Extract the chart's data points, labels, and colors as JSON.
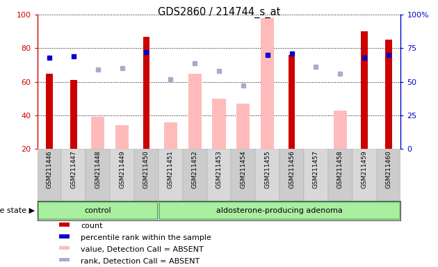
{
  "title": "GDS2860 / 214744_s_at",
  "samples": [
    "GSM211446",
    "GSM211447",
    "GSM211448",
    "GSM211449",
    "GSM211450",
    "GSM211451",
    "GSM211452",
    "GSM211453",
    "GSM211454",
    "GSM211455",
    "GSM211456",
    "GSM211457",
    "GSM211458",
    "GSM211459",
    "GSM211460"
  ],
  "count": [
    65,
    61,
    null,
    null,
    87,
    null,
    null,
    null,
    null,
    null,
    76,
    null,
    null,
    90,
    85
  ],
  "percentile_rank_pct": [
    68,
    69,
    null,
    null,
    72,
    null,
    null,
    null,
    null,
    70,
    71,
    null,
    null,
    68,
    70
  ],
  "value_absent": [
    null,
    null,
    39,
    34,
    null,
    36,
    65,
    50,
    47,
    98,
    null,
    null,
    43,
    null,
    null
  ],
  "rank_absent_pct": [
    null,
    null,
    59,
    60,
    null,
    52,
    64,
    58,
    47,
    70,
    null,
    61,
    56,
    null,
    null
  ],
  "ymin": 20,
  "ymax": 100,
  "yticks_left": [
    20,
    40,
    60,
    80,
    100
  ],
  "yticks_right_pct": [
    0,
    25,
    50,
    75,
    100
  ],
  "groups": [
    {
      "label": "control",
      "start": 0,
      "end": 5
    },
    {
      "label": "aldosterone-producing adenoma",
      "start": 5,
      "end": 15
    }
  ],
  "disease_state_label": "disease state",
  "count_color": "#cc0000",
  "percentile_color": "#0000cc",
  "value_absent_color": "#ffbbbb",
  "rank_absent_color": "#aaaacc",
  "plot_bg": "white",
  "xtick_bg": "#d4d4d4",
  "group_bg": "#bbbbbb",
  "group_fill_light": "#aaeea0",
  "group_fill_dark": "#55cc55",
  "group_edge": "#33aa33",
  "count_bar_width": 0.28,
  "absent_bar_width": 0.55,
  "legend_items": [
    {
      "label": "count",
      "color": "#cc0000"
    },
    {
      "label": "percentile rank within the sample",
      "color": "#0000cc"
    },
    {
      "label": "value, Detection Call = ABSENT",
      "color": "#ffbbbb"
    },
    {
      "label": "rank, Detection Call = ABSENT",
      "color": "#aaaacc"
    }
  ]
}
